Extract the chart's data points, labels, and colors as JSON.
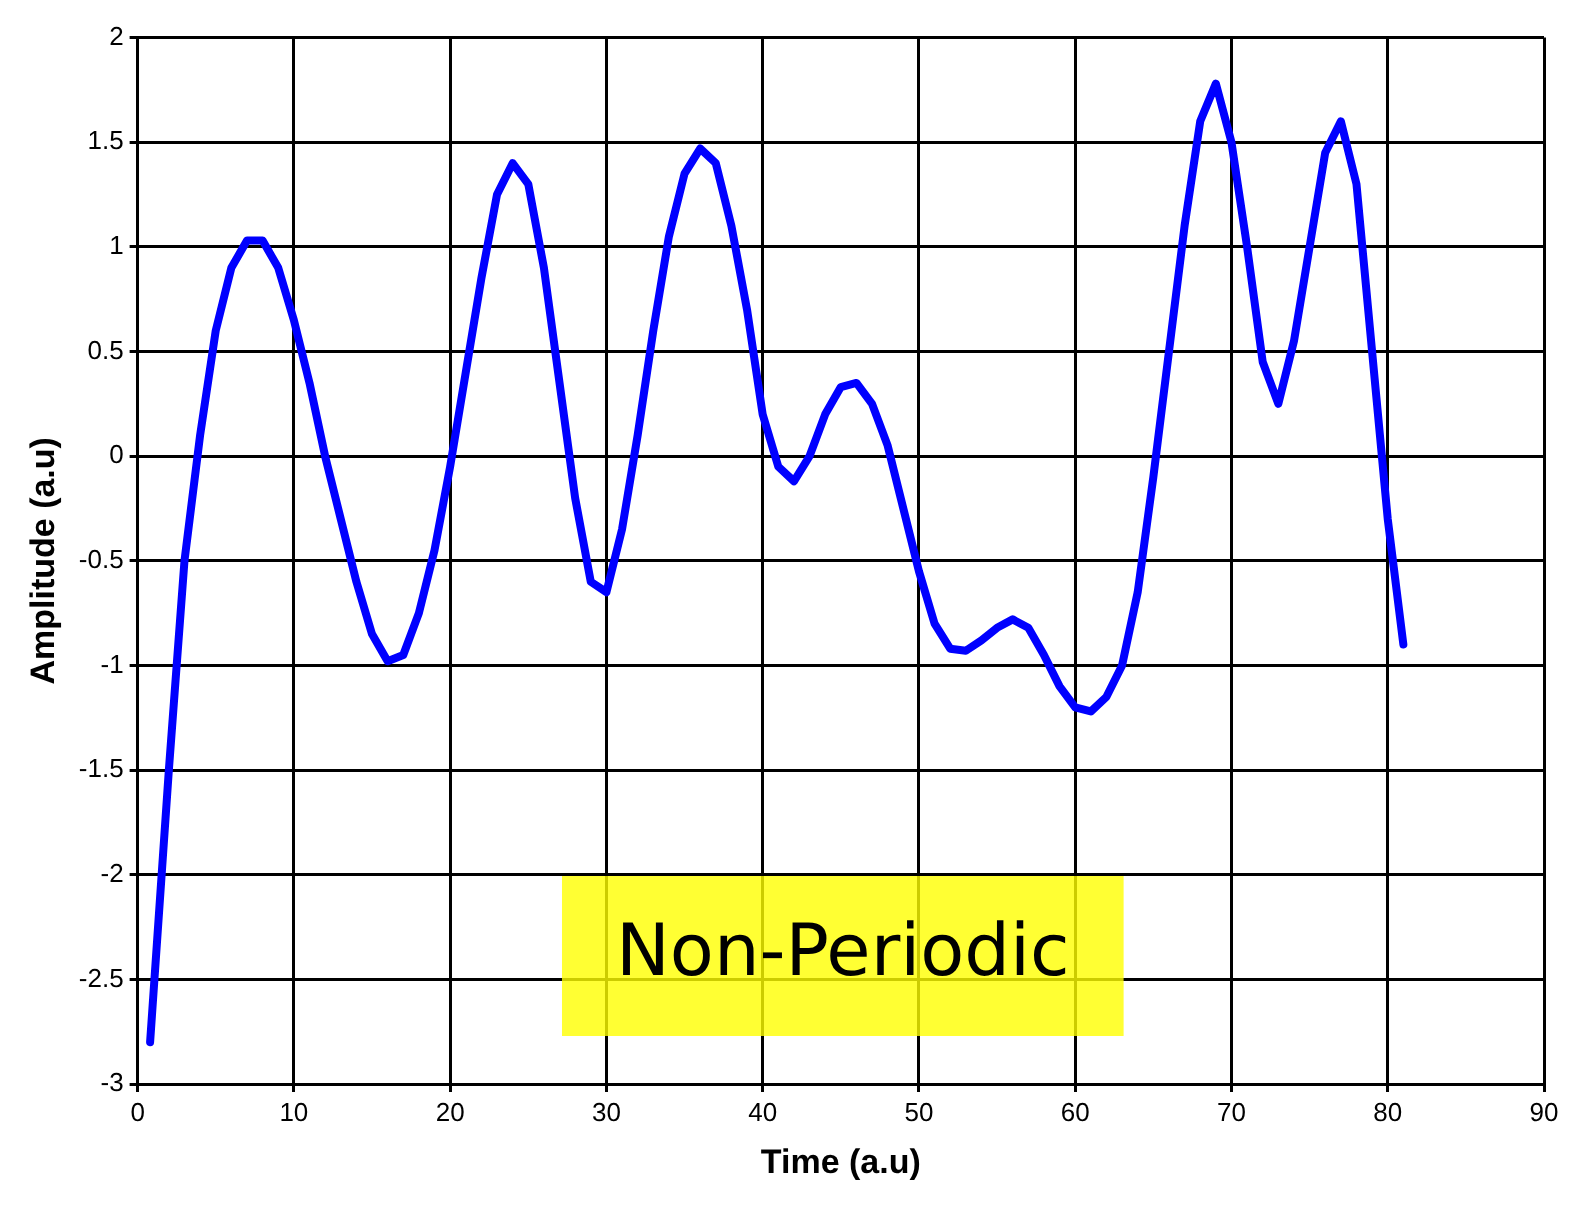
{
  "chart_data": {
    "type": "line",
    "xlabel": "Time (a.u)",
    "ylabel": "Amplitude (a.u)",
    "annotations": [
      "Non-Periodic"
    ],
    "xlim": [
      0,
      90
    ],
    "xticks": [
      0,
      10,
      20,
      30,
      40,
      50,
      60,
      70,
      80,
      90
    ],
    "ylim": [
      -3,
      2
    ],
    "yticks": [
      -3,
      -2.5,
      -2,
      -1.5,
      -1,
      -0.5,
      0,
      0.5,
      1,
      1.5,
      2
    ],
    "grid": true,
    "legend": false,
    "marker": "none",
    "line_style": "solid",
    "series": [
      {
        "color": "#0000ff",
        "x": [
          0.8,
          2,
          3,
          4,
          5,
          6,
          7,
          8,
          9,
          10,
          11,
          12,
          13,
          14,
          15,
          16,
          17,
          18,
          19,
          20,
          21,
          22,
          23,
          24,
          25,
          26,
          27,
          28,
          29,
          30,
          31,
          32,
          33,
          34,
          35,
          36,
          37,
          38,
          39,
          40,
          41,
          42,
          43,
          44,
          45,
          46,
          47,
          48,
          49,
          50,
          51,
          52,
          53,
          54,
          55,
          56,
          57,
          58,
          59,
          60,
          61,
          62,
          63,
          64,
          65,
          66,
          67,
          68,
          69,
          70,
          71,
          72,
          73,
          74,
          75,
          76,
          77,
          78,
          79,
          80,
          81
        ],
        "values": [
          -2.8,
          -1.5,
          -0.5,
          0.1,
          0.6,
          0.9,
          1.03,
          1.03,
          0.9,
          0.65,
          0.35,
          0,
          -0.3,
          -0.6,
          -0.85,
          -0.98,
          -0.95,
          -0.75,
          -0.45,
          -0.05,
          0.4,
          0.85,
          1.25,
          1.4,
          1.3,
          0.9,
          0.35,
          -0.2,
          -0.6,
          -0.65,
          -0.35,
          0.1,
          0.6,
          1.05,
          1.35,
          1.47,
          1.4,
          1.1,
          0.7,
          0.2,
          -0.05,
          -0.12,
          0,
          0.2,
          0.33,
          0.35,
          0.25,
          0.05,
          -0.25,
          -0.55,
          -0.8,
          -0.92,
          -0.93,
          -0.88,
          -0.82,
          -0.78,
          -0.82,
          -0.95,
          -1.1,
          -1.2,
          -1.22,
          -1.15,
          -1,
          -0.65,
          -0.1,
          0.5,
          1.1,
          1.6,
          1.78,
          1.5,
          1,
          0.45,
          0.25,
          0.55,
          1,
          1.45,
          1.6,
          1.3,
          0.5,
          -0.3,
          -0.9
        ]
      }
    ]
  }
}
